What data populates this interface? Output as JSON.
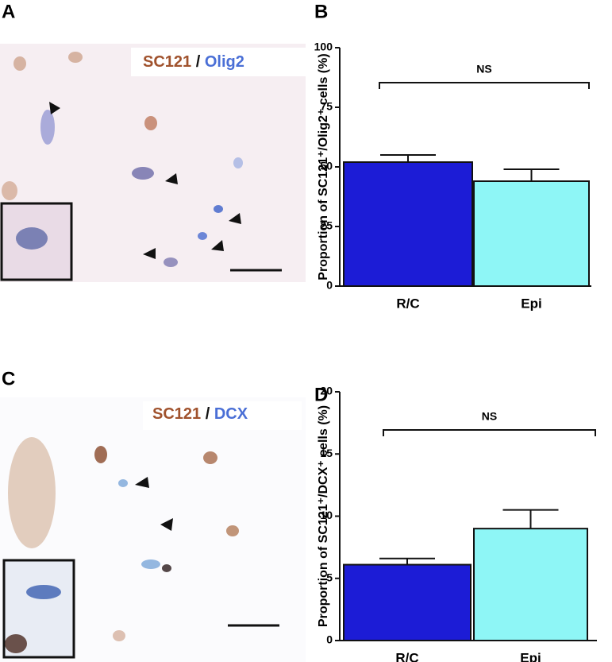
{
  "panels": [
    {
      "letter": "A",
      "stain": [
        "SC121",
        "/",
        "Olig2"
      ]
    },
    {
      "letter": "B"
    },
    {
      "letter": "C",
      "stain": [
        "SC121",
        "/",
        "DCX"
      ]
    },
    {
      "letter": "D"
    }
  ],
  "chart_data": [
    {
      "type": "bar",
      "ylabel": "Proportion of SC121⁺/Olig2⁺ cells (%)",
      "annotation": "NS",
      "categories": [
        "R/C",
        "Epi"
      ],
      "values": [
        52,
        44
      ],
      "errors": [
        3,
        5
      ],
      "colors": [
        "#1c1cd6",
        "#8ef6f6"
      ],
      "ylim": [
        0,
        100
      ],
      "yticks": [
        0,
        25,
        50,
        75,
        100
      ]
    },
    {
      "type": "bar",
      "ylabel": "Proportion of SC121⁺/DCX⁺ cells (%)",
      "annotation": "NS",
      "categories": [
        "R/C",
        "Epi"
      ],
      "values": [
        6.1,
        9.0
      ],
      "errors": [
        0.5,
        1.5
      ],
      "colors": [
        "#1c1cd6",
        "#8ef6f6"
      ],
      "ylim": [
        0,
        20
      ],
      "yticks": [
        0,
        5,
        10,
        15,
        20
      ]
    }
  ]
}
